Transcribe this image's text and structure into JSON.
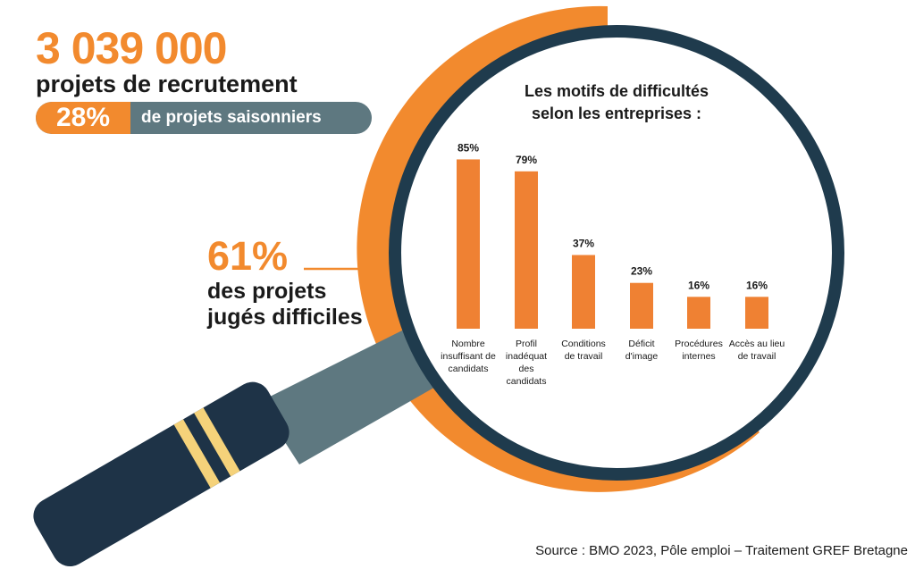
{
  "headline": {
    "total_projects": "3 039 000",
    "total_label": "projets de recrutement",
    "seasonal_pct": "28%",
    "seasonal_label": "de projets saisonniers"
  },
  "difficult": {
    "pct": "61%",
    "label_line1": "des projets",
    "label_line2": "jugés difficiles"
  },
  "source": "Source : BMO 2023, Pôle emploi – Traitement GREF Bretagne",
  "colors": {
    "orange": "#f28a2e",
    "bar": "#ef8133",
    "navy": "#1e3347",
    "ring_dark": "#1f3b4d",
    "slate": "#5e7880",
    "gold": "#f5d27a"
  },
  "chart_data": {
    "type": "bar",
    "title": [
      "Les motifs de difficultés",
      "selon les entreprises :"
    ],
    "categories": [
      [
        "Nombre",
        "insuffisant de",
        "candidats"
      ],
      [
        "Profil",
        "inadéquat",
        "des",
        "candidats"
      ],
      [
        "Conditions",
        "de travail"
      ],
      [
        "Déficit",
        "d'image"
      ],
      [
        "Procédures",
        "internes"
      ],
      [
        "Accès au lieu",
        "de travail"
      ]
    ],
    "values": [
      85,
      79,
      37,
      23,
      16,
      16
    ],
    "data_labels": [
      "85%",
      "79%",
      "37%",
      "23%",
      "16%",
      "16%"
    ],
    "ylim": [
      0,
      100
    ],
    "grid": false,
    "legend": "none"
  }
}
